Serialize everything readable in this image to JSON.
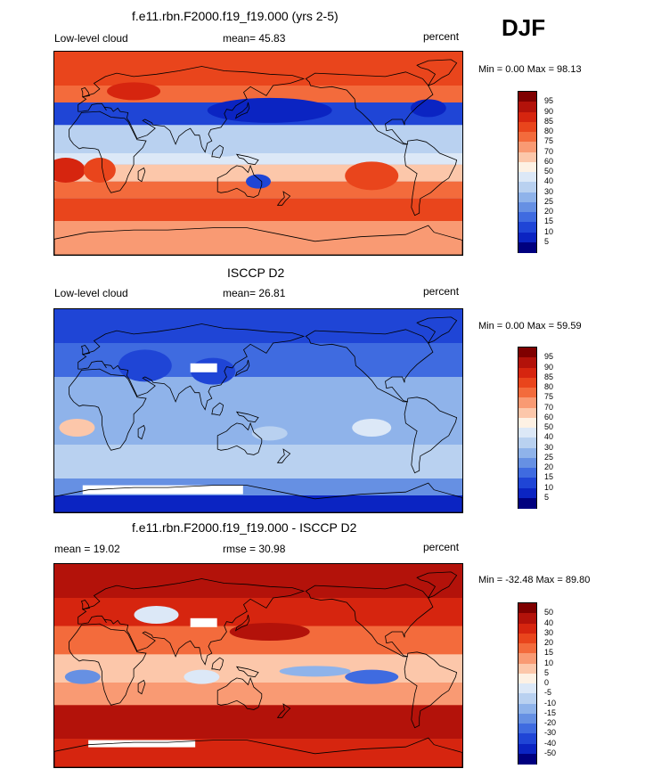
{
  "season": "DJF",
  "panels": [
    {
      "title": "f.e11.rbn.F2000.f19_f19.000 (yrs 2-5)",
      "left_label": "Low-level cloud",
      "center_label": "mean=  45.83",
      "right_label": "percent",
      "minmax": "Min =   0.00 Max =  98.13",
      "scheme": "abs",
      "colorbar": {
        "colors": [
          "#7f0000",
          "#b3120a",
          "#d6250f",
          "#e9451c",
          "#f36b3c",
          "#f99a73",
          "#fcc7aa",
          "#fdf1e4",
          "#dce8f7",
          "#b9d1f0",
          "#8fb3ea",
          "#6690e3",
          "#3f6be0",
          "#1f45d6",
          "#0b24c2",
          "#00007f"
        ],
        "labels": [
          "95",
          "90",
          "85",
          "80",
          "75",
          "70",
          "60",
          "50",
          "40",
          "30",
          "25",
          "20",
          "15",
          "10",
          "5"
        ]
      }
    },
    {
      "title": "ISCCP D2",
      "left_label": "Low-level cloud",
      "center_label": "mean=  26.81",
      "right_label": "percent",
      "minmax": "Min =   0.00 Max =  59.59",
      "scheme": "abs",
      "colorbar": {
        "colors": [
          "#7f0000",
          "#b3120a",
          "#d6250f",
          "#e9451c",
          "#f36b3c",
          "#f99a73",
          "#fcc7aa",
          "#fdf1e4",
          "#dce8f7",
          "#b9d1f0",
          "#8fb3ea",
          "#6690e3",
          "#3f6be0",
          "#1f45d6",
          "#0b24c2",
          "#00007f"
        ],
        "labels": [
          "95",
          "90",
          "85",
          "80",
          "75",
          "70",
          "60",
          "50",
          "40",
          "30",
          "25",
          "20",
          "15",
          "10",
          "5"
        ]
      }
    },
    {
      "title": "f.e11.rbn.F2000.f19_f19.000 - ISCCP D2",
      "left_label": "mean =  19.02",
      "center_label": "rmse =  30.98",
      "right_label": "percent",
      "minmax": "Min = -32.48 Max =  89.80",
      "scheme": "diff",
      "colorbar": {
        "colors": [
          "#7f0000",
          "#b3120a",
          "#d6250f",
          "#e9451c",
          "#f36b3c",
          "#f99a73",
          "#fcc7aa",
          "#fdf1e4",
          "#dce8f7",
          "#b9d1f0",
          "#8fb3ea",
          "#6690e3",
          "#3f6be0",
          "#1f45d6",
          "#0b24c2",
          "#00007f"
        ],
        "labels": [
          "50",
          "40",
          "30",
          "20",
          "15",
          "10",
          "5",
          "0",
          "-5",
          "-10",
          "-15",
          "-20",
          "-30",
          "-40",
          "-50"
        ]
      }
    }
  ],
  "chart_data": [
    {
      "type": "heatmap",
      "title": "f.e11.rbn.F2000.f19_f19.000 (yrs 2-5)",
      "variable": "Low-level cloud",
      "units": "percent",
      "mean": 45.83,
      "min": 0.0,
      "max": 98.13,
      "levels": [
        5,
        10,
        15,
        20,
        25,
        30,
        40,
        50,
        60,
        70,
        75,
        80,
        85,
        90,
        95
      ]
    },
    {
      "type": "heatmap",
      "title": "ISCCP D2",
      "variable": "Low-level cloud",
      "units": "percent",
      "mean": 26.81,
      "min": 0.0,
      "max": 59.59,
      "levels": [
        5,
        10,
        15,
        20,
        25,
        30,
        40,
        50,
        60,
        70,
        75,
        80,
        85,
        90,
        95
      ]
    },
    {
      "type": "heatmap",
      "title": "f.e11.rbn.F2000.f19_f19.000 - ISCCP D2",
      "units": "percent",
      "mean": 19.02,
      "rmse": 30.98,
      "min": -32.48,
      "max": 89.8,
      "levels": [
        -50,
        -40,
        -30,
        -20,
        -15,
        -10,
        -5,
        0,
        5,
        10,
        15,
        20,
        30,
        40,
        50
      ]
    }
  ]
}
